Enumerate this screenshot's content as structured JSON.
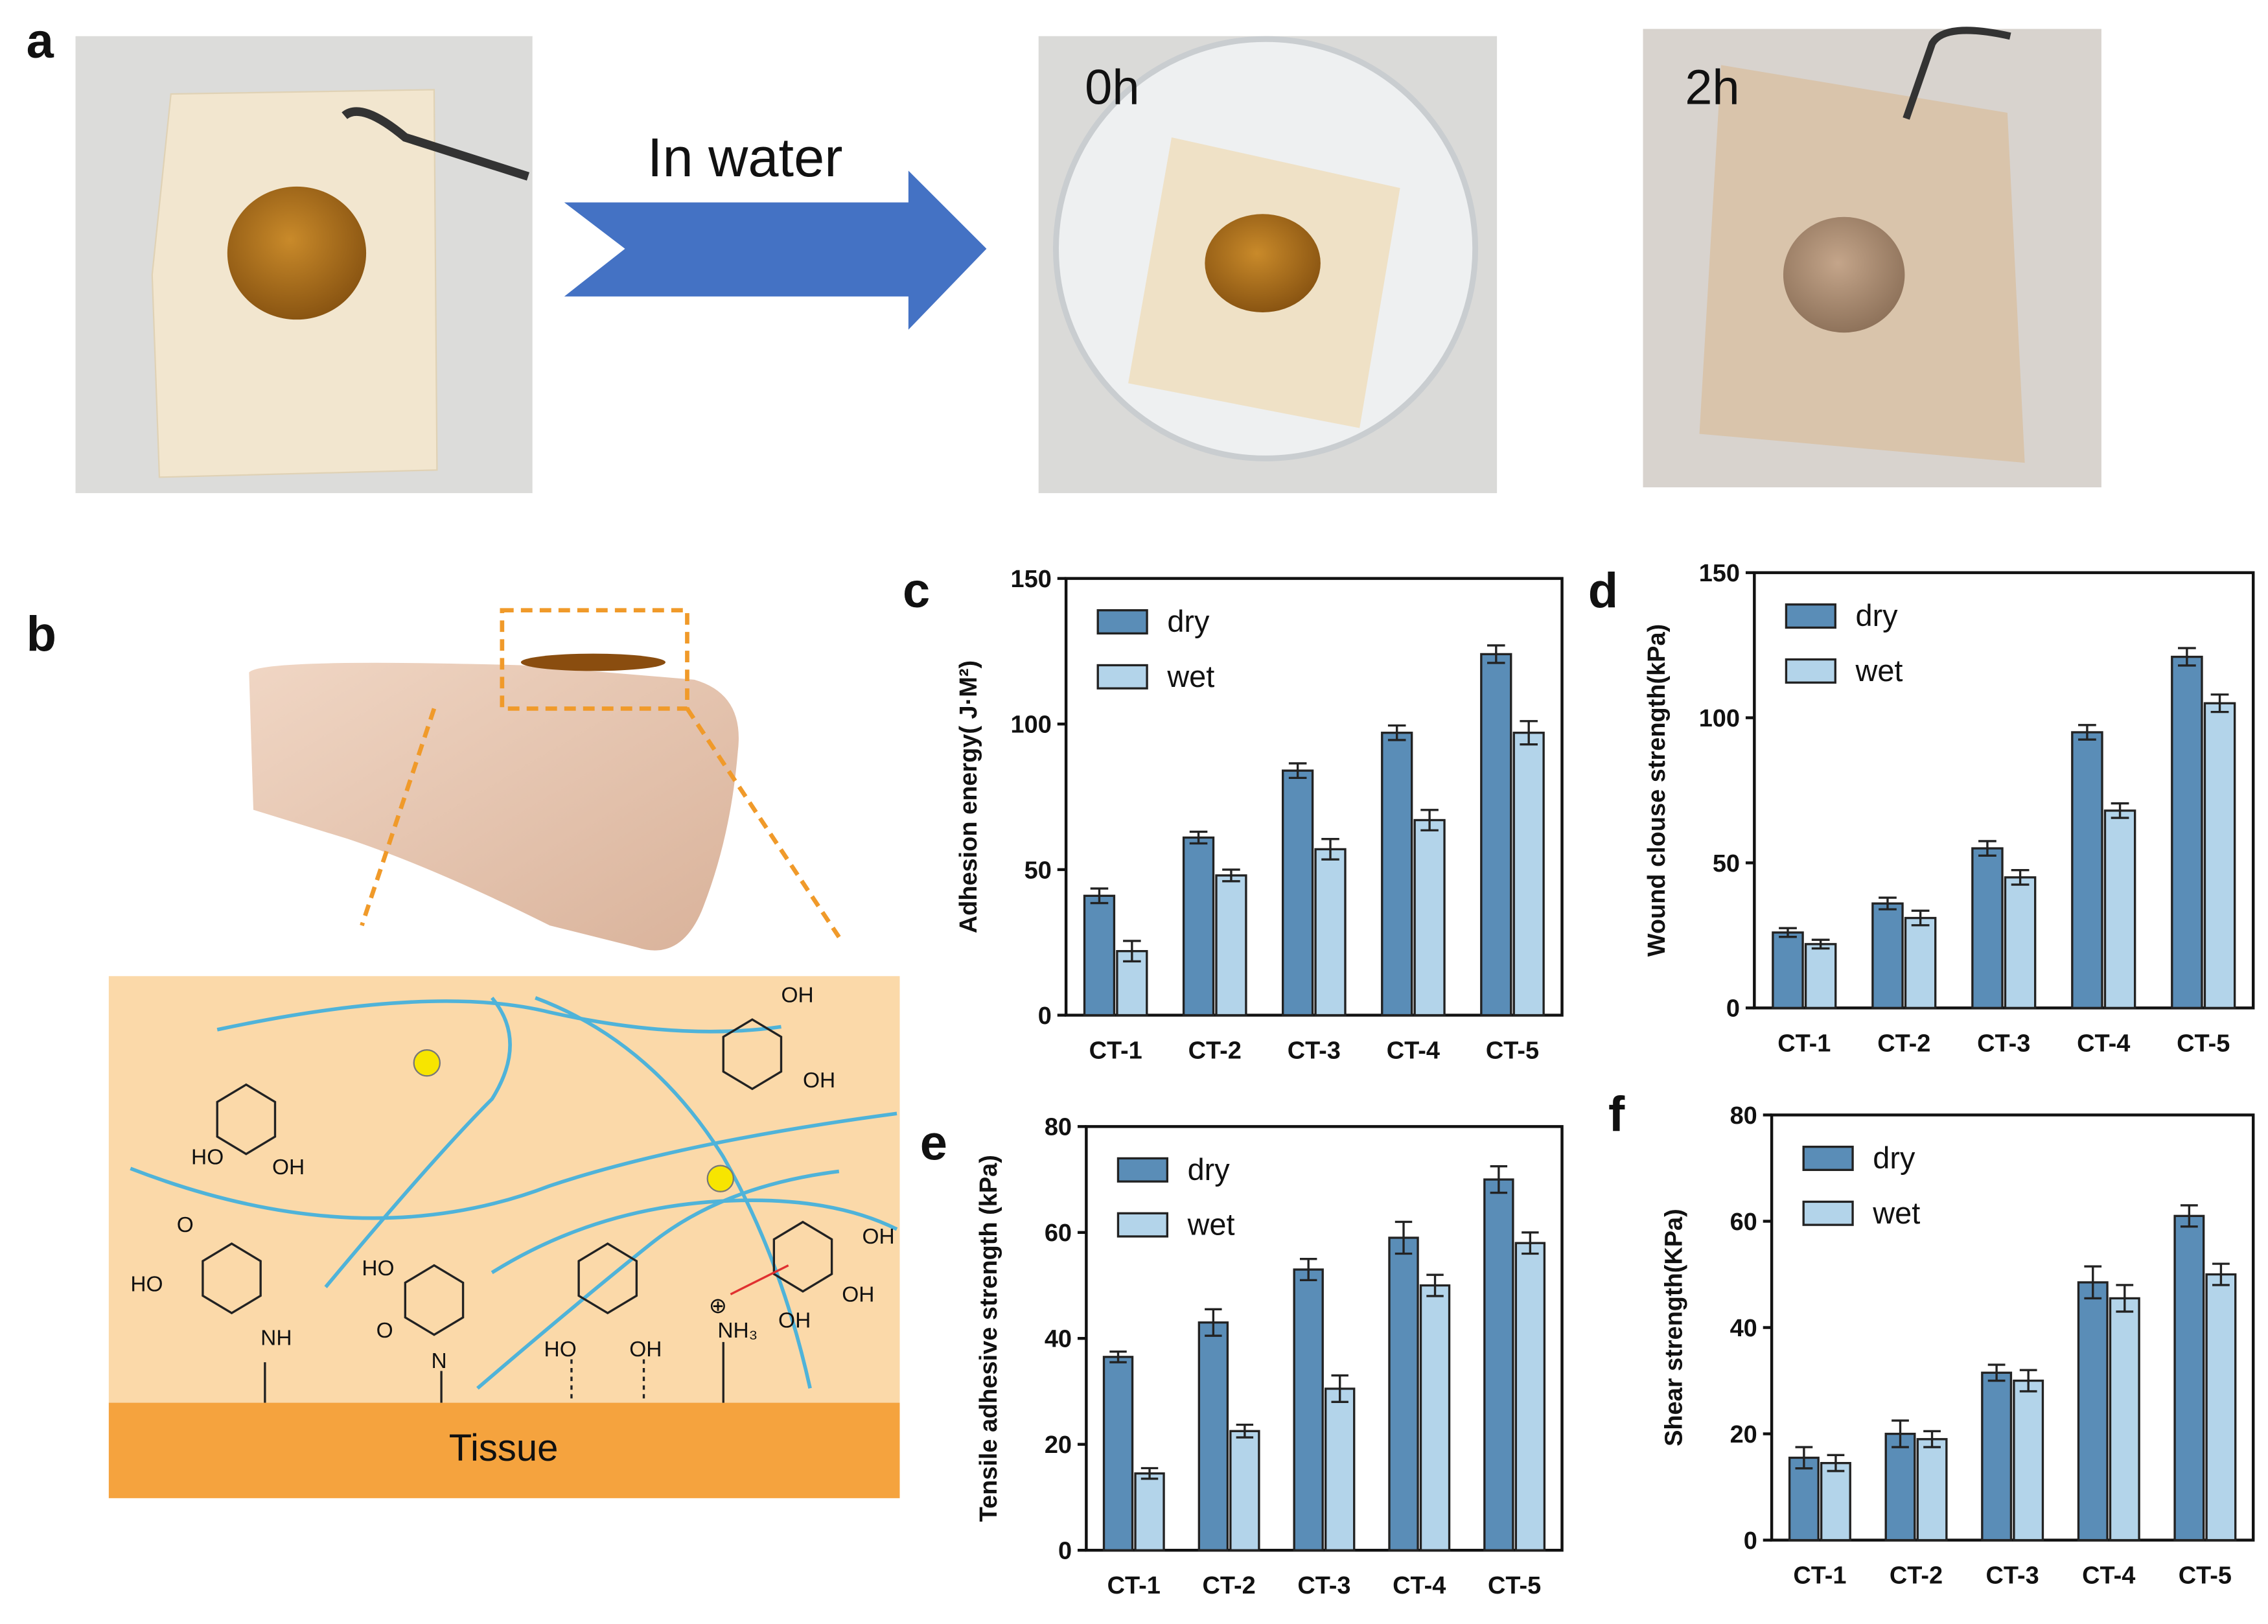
{
  "panel_labels": [
    "a",
    "b",
    "c",
    "d",
    "e",
    "f"
  ],
  "panel_a": {
    "arrow_label": "In water",
    "time_labels": [
      "0h",
      "2h"
    ]
  },
  "panel_b": {
    "tissue_label": "Tissue",
    "chem_labels": [
      "HO",
      "OH",
      "HO",
      "O",
      "NH",
      "HO",
      "O",
      "N",
      "HO",
      "OH",
      "⊕",
      "NH₃",
      "OH",
      "OH",
      "OH",
      "OH",
      "OH"
    ]
  },
  "chart_data": [
    {
      "type": "bar",
      "y_label": "Adhesion energy( J·M²)",
      "categories": [
        "CT-1",
        "CT-2",
        "CT-3",
        "CT-4",
        "CT-5"
      ],
      "series": [
        {
          "name": "dry",
          "color": "#5a8db7",
          "values": [
            41,
            61,
            84,
            97,
            124
          ],
          "errors": [
            2.5,
            2,
            2.5,
            2.5,
            3
          ]
        },
        {
          "name": "wet",
          "color": "#b3d4ea",
          "values": [
            22,
            48,
            57,
            67,
            97
          ],
          "errors": [
            3.5,
            2,
            3.5,
            3.5,
            4
          ]
        }
      ],
      "ylim": [
        0,
        150
      ],
      "yticks": [
        0,
        50,
        100,
        150
      ],
      "legend": "upper left"
    },
    {
      "type": "bar",
      "y_label": "Wound clouse strength(kPa)",
      "categories": [
        "CT-1",
        "CT-2",
        "CT-3",
        "CT-4",
        "CT-5"
      ],
      "series": [
        {
          "name": "dry",
          "color": "#5a8db7",
          "values": [
            26,
            36,
            55,
            95,
            121
          ],
          "errors": [
            1.5,
            2,
            2.5,
            2.5,
            3
          ]
        },
        {
          "name": "wet",
          "color": "#b3d4ea",
          "values": [
            22,
            31,
            45,
            68,
            105
          ],
          "errors": [
            1.5,
            2.5,
            2.5,
            2.5,
            3
          ]
        }
      ],
      "ylim": [
        0,
        150
      ],
      "yticks": [
        0,
        50,
        100,
        150
      ],
      "legend": "upper left"
    },
    {
      "type": "bar",
      "y_label": "Tensile adhesive strength (kPa)",
      "categories": [
        "CT-1",
        "CT-2",
        "CT-3",
        "CT-4",
        "CT-5"
      ],
      "series": [
        {
          "name": "dry",
          "color": "#5a8db7",
          "values": [
            36.5,
            43,
            53,
            59,
            70
          ],
          "errors": [
            1,
            2.5,
            2,
            3,
            2.5
          ]
        },
        {
          "name": "wet",
          "color": "#b3d4ea",
          "values": [
            14.5,
            22.5,
            30.5,
            50,
            58
          ],
          "errors": [
            1,
            1.2,
            2.5,
            2,
            2
          ]
        }
      ],
      "ylim": [
        0,
        80
      ],
      "yticks": [
        0,
        20,
        40,
        60,
        80
      ],
      "legend": "upper left"
    },
    {
      "type": "bar",
      "y_label": "Shear strength(KPa)",
      "categories": [
        "CT-1",
        "CT-2",
        "CT-3",
        "CT-4",
        "CT-5"
      ],
      "series": [
        {
          "name": "dry",
          "color": "#5a8db7",
          "values": [
            15.5,
            20,
            31.5,
            48.5,
            61
          ],
          "errors": [
            2,
            2.5,
            1.5,
            3,
            2
          ]
        },
        {
          "name": "wet",
          "color": "#b3d4ea",
          "values": [
            14.5,
            19,
            30,
            45.5,
            50
          ],
          "errors": [
            1.5,
            1.5,
            2,
            2.5,
            2
          ]
        }
      ],
      "ylim": [
        0,
        80
      ],
      "yticks": [
        0,
        20,
        40,
        60,
        80
      ],
      "legend": "upper left"
    }
  ]
}
